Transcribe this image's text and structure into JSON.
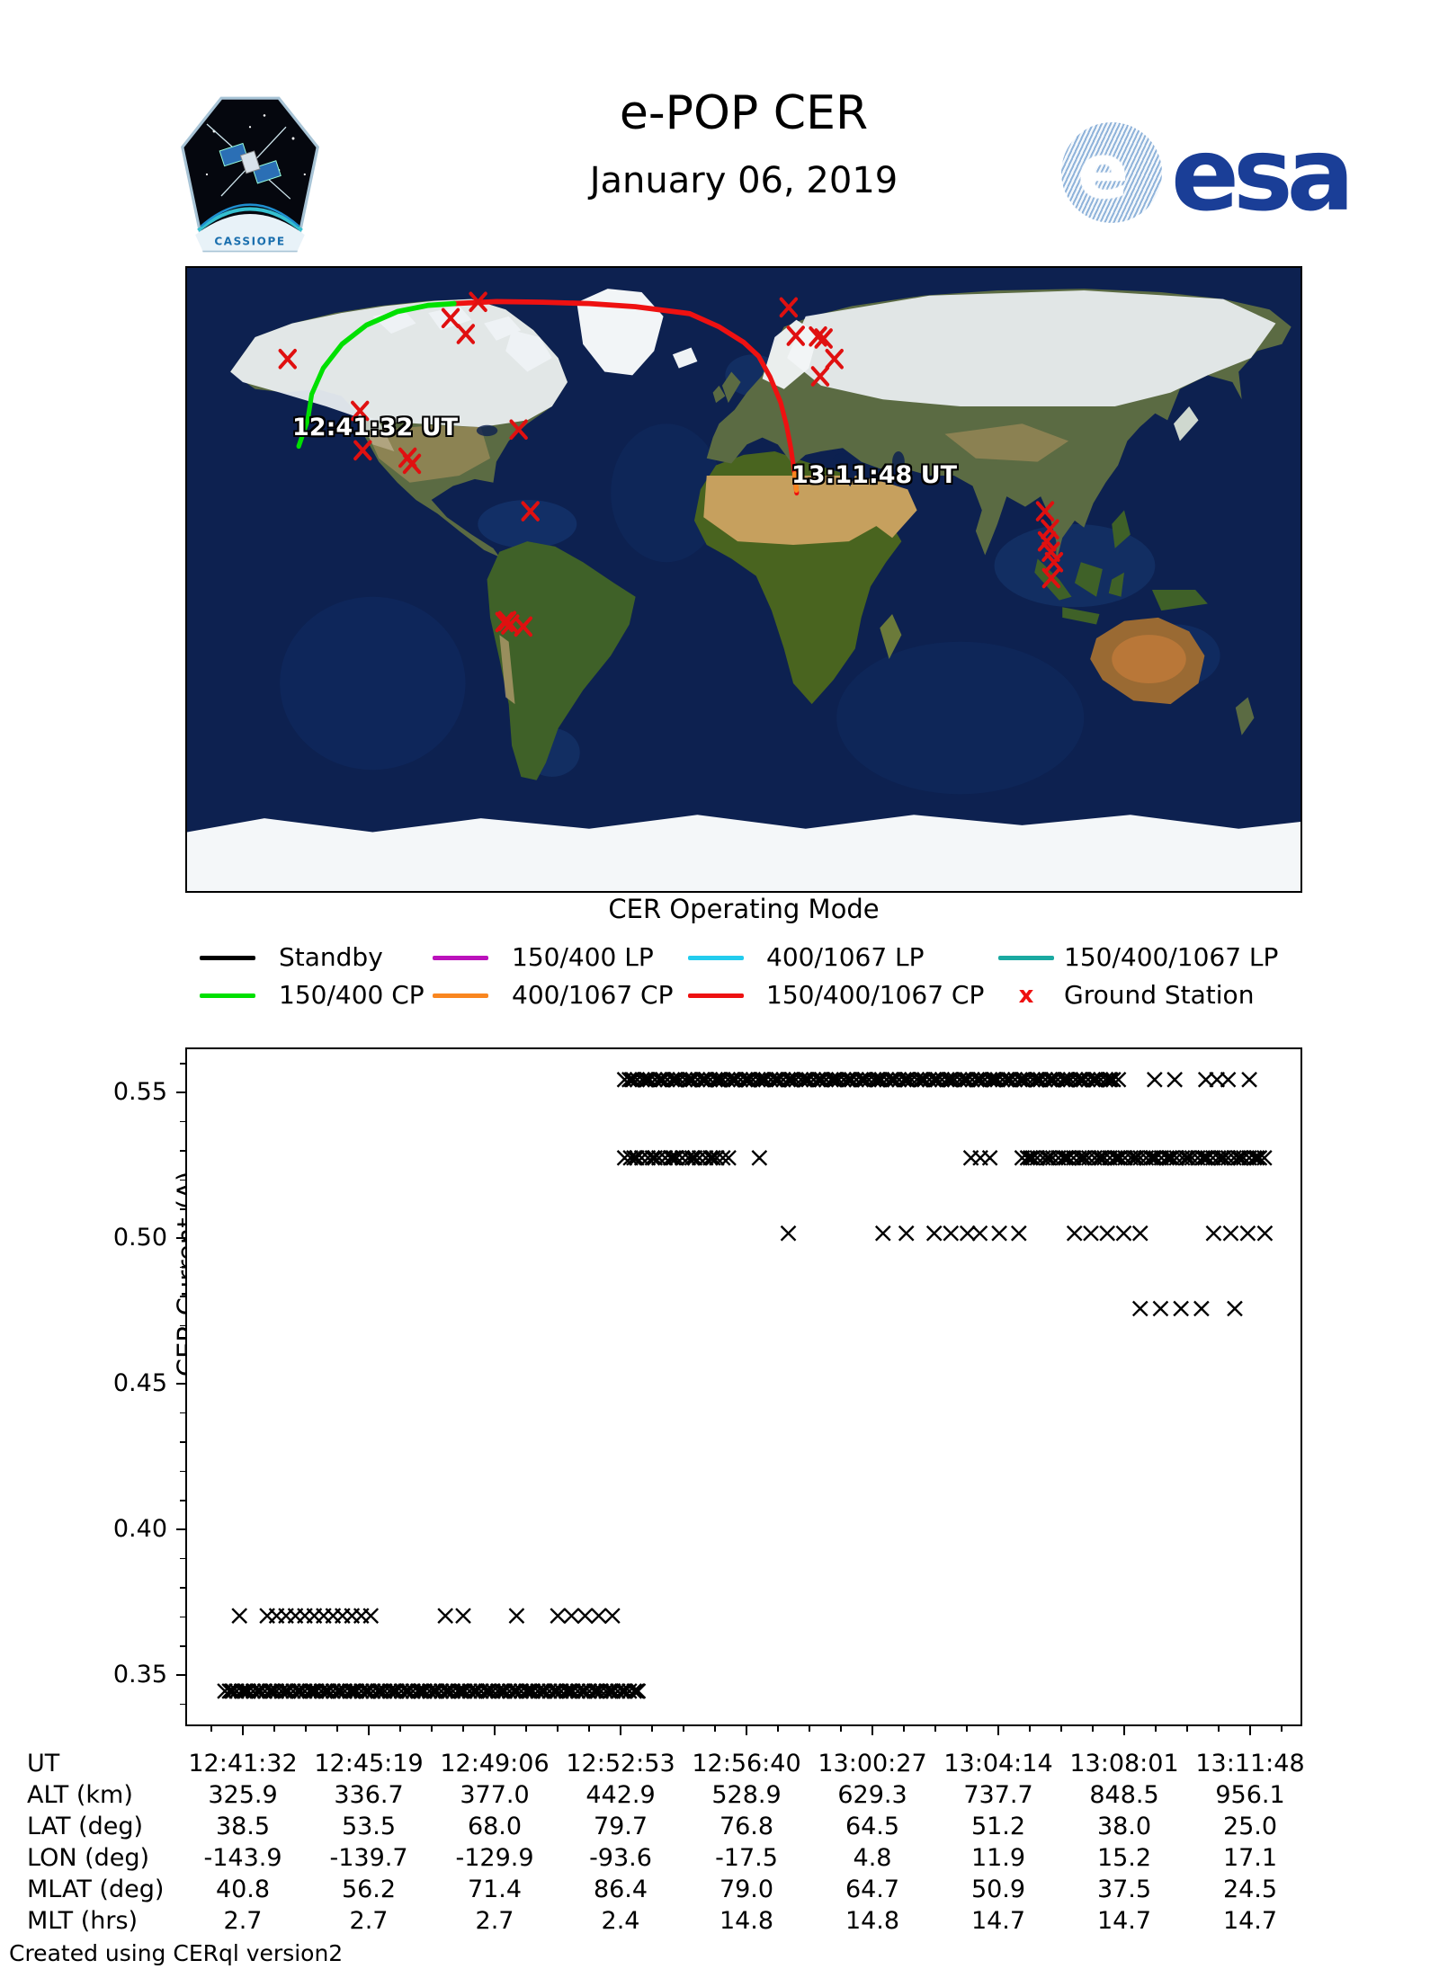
{
  "header": {
    "title": "e-POP CER",
    "date": "January 06, 2019",
    "mission_patch_text": "CASSIOPE",
    "esa_logo_text": "esa"
  },
  "map": {
    "start_label": "12:41:32 UT",
    "end_label": "13:11:48 UT",
    "track": {
      "green_mode": "150/400 CP",
      "red_mode": "150/400/1067 CP",
      "green_points": [
        [
          -143.9,
          38.5
        ],
        [
          -141.0,
          46.0
        ],
        [
          -139.7,
          53.5
        ],
        [
          -136.0,
          61.0
        ],
        [
          -129.9,
          68.0
        ],
        [
          -122.0,
          73.5
        ],
        [
          -112.0,
          77.4
        ],
        [
          -102.0,
          79.2
        ],
        [
          -93.6,
          79.7
        ]
      ],
      "red_points": [
        [
          -93.6,
          79.7
        ],
        [
          -80.0,
          80.3
        ],
        [
          -65.0,
          80.1
        ],
        [
          -50.0,
          79.7
        ],
        [
          -35.0,
          78.8
        ],
        [
          -17.5,
          76.8
        ],
        [
          -8.0,
          73.0
        ],
        [
          0.0,
          68.5
        ],
        [
          4.8,
          64.5
        ],
        [
          8.5,
          58.5
        ],
        [
          11.9,
          51.2
        ],
        [
          13.8,
          44.6
        ],
        [
          15.2,
          38.0
        ],
        [
          16.3,
          31.5
        ],
        [
          17.1,
          25.0
        ]
      ]
    },
    "ground_stations_lonlat": [
      [
        -147.5,
        63.7
      ],
      [
        -94.8,
        75.5
      ],
      [
        -89.9,
        70.9
      ],
      [
        -85.9,
        80.2
      ],
      [
        -124.1,
        48.7
      ],
      [
        -123.2,
        37.3
      ],
      [
        -108.7,
        35.2
      ],
      [
        -107.3,
        33.4
      ],
      [
        -72.8,
        43.3
      ],
      [
        -69.0,
        19.7
      ],
      [
        -77.4,
        -12.3
      ],
      [
        -76.5,
        -12.0
      ],
      [
        -75.5,
        -13.0
      ],
      [
        -71.3,
        -13.6
      ],
      [
        14.5,
        78.6
      ],
      [
        16.8,
        70.4
      ],
      [
        24.0,
        70.2
      ],
      [
        25.8,
        69.6
      ],
      [
        29.3,
        63.7
      ],
      [
        24.7,
        58.7
      ],
      [
        97.4,
        19.7
      ],
      [
        99.0,
        14.5
      ],
      [
        98.0,
        11.0
      ],
      [
        99.3,
        8.0
      ],
      [
        100.3,
        5.0
      ],
      [
        99.4,
        0.4
      ]
    ]
  },
  "legend": {
    "title": "CER Operating Mode",
    "rows": [
      [
        {
          "label": "Standby",
          "color": "#000000",
          "swatch": "line"
        },
        {
          "label": "150/400 LP",
          "color": "#bb11bb",
          "swatch": "line"
        },
        {
          "label": "400/1067 LP",
          "color": "#22ccee",
          "swatch": "line"
        },
        {
          "label": "150/400/1067 LP",
          "color": "#1aa9a1",
          "swatch": "line"
        }
      ],
      [
        {
          "label": "150/400 CP",
          "color": "#00e000",
          "swatch": "line"
        },
        {
          "label": "400/1067 CP",
          "color": "#f98620",
          "swatch": "line"
        },
        {
          "label": "150/400/1067 CP",
          "color": "#ee1111",
          "swatch": "line"
        },
        {
          "label": "Ground Station",
          "color": "#ee1111",
          "swatch": "x"
        }
      ]
    ]
  },
  "chart_data": {
    "type": "scatter",
    "marker": "x",
    "marker_color": "#000000",
    "ylabel": "CER Current (A)",
    "ylim": [
      0.3325,
      0.5655
    ],
    "yticks": [
      "0.35",
      "0.40",
      "0.45",
      "0.50",
      "0.55"
    ],
    "ytick_values": [
      0.35,
      0.4,
      0.45,
      0.5,
      0.55
    ],
    "y_minor_step": 0.01,
    "xticks": [
      "12:41:32",
      "12:45:19",
      "12:49:06",
      "12:52:53",
      "12:56:40",
      "13:00:27",
      "13:04:14",
      "13:08:01",
      "13:11:48"
    ],
    "grid": false,
    "current_levels": [
      0.555,
      0.528,
      0.502,
      0.476,
      0.37,
      0.344
    ],
    "clusters": [
      {
        "current": 0.555,
        "x0": 0.393,
        "x1": 0.836,
        "n": 150
      },
      {
        "current": 0.555,
        "x0": 0.869,
        "x1": 0.869,
        "n": 1
      },
      {
        "current": 0.555,
        "x0": 0.887,
        "x1": 0.887,
        "n": 1
      },
      {
        "current": 0.555,
        "x0": 0.915,
        "x1": 0.935,
        "n": 3
      },
      {
        "current": 0.555,
        "x0": 0.954,
        "x1": 0.954,
        "n": 1
      },
      {
        "current": 0.528,
        "x0": 0.393,
        "x1": 0.485,
        "n": 24
      },
      {
        "current": 0.528,
        "x0": 0.514,
        "x1": 0.514,
        "n": 1
      },
      {
        "current": 0.528,
        "x0": 0.704,
        "x1": 0.721,
        "n": 3
      },
      {
        "current": 0.528,
        "x0": 0.75,
        "x1": 0.968,
        "n": 62
      },
      {
        "current": 0.502,
        "x0": 0.54,
        "x1": 0.54,
        "n": 1
      },
      {
        "current": 0.502,
        "x0": 0.625,
        "x1": 0.646,
        "n": 2
      },
      {
        "current": 0.502,
        "x0": 0.671,
        "x1": 0.701,
        "n": 3
      },
      {
        "current": 0.502,
        "x0": 0.712,
        "x1": 0.747,
        "n": 3
      },
      {
        "current": 0.502,
        "x0": 0.797,
        "x1": 0.856,
        "n": 5
      },
      {
        "current": 0.502,
        "x0": 0.922,
        "x1": 0.968,
        "n": 4
      },
      {
        "current": 0.476,
        "x0": 0.856,
        "x1": 0.911,
        "n": 4
      },
      {
        "current": 0.476,
        "x0": 0.941,
        "x1": 0.941,
        "n": 1
      },
      {
        "current": 0.37,
        "x0": 0.047,
        "x1": 0.047,
        "n": 1
      },
      {
        "current": 0.37,
        "x0": 0.072,
        "x1": 0.165,
        "n": 12
      },
      {
        "current": 0.37,
        "x0": 0.232,
        "x1": 0.248,
        "n": 2
      },
      {
        "current": 0.37,
        "x0": 0.296,
        "x1": 0.296,
        "n": 1
      },
      {
        "current": 0.37,
        "x0": 0.333,
        "x1": 0.382,
        "n": 5
      },
      {
        "current": 0.344,
        "x0": 0.034,
        "x1": 0.406,
        "n": 135
      }
    ]
  },
  "table": {
    "rows": [
      {
        "label": "UT",
        "values": [
          "12:41:32",
          "12:45:19",
          "12:49:06",
          "12:52:53",
          "12:56:40",
          "13:00:27",
          "13:04:14",
          "13:08:01",
          "13:11:48"
        ]
      },
      {
        "label": "ALT (km)",
        "values": [
          "325.9",
          "336.7",
          "377.0",
          "442.9",
          "528.9",
          "629.3",
          "737.7",
          "848.5",
          "956.1"
        ]
      },
      {
        "label": "LAT (deg)",
        "values": [
          "38.5",
          "53.5",
          "68.0",
          "79.7",
          "76.8",
          "64.5",
          "51.2",
          "38.0",
          "25.0"
        ]
      },
      {
        "label": "LON (deg)",
        "values": [
          "-143.9",
          "-139.7",
          "-129.9",
          "-93.6",
          "-17.5",
          "4.8",
          "11.9",
          "15.2",
          "17.1"
        ]
      },
      {
        "label": "MLAT (deg)",
        "values": [
          "40.8",
          "56.2",
          "71.4",
          "86.4",
          "79.0",
          "64.7",
          "50.9",
          "37.5",
          "24.5"
        ]
      },
      {
        "label": "MLT (hrs)",
        "values": [
          "2.7",
          "2.7",
          "2.7",
          "2.4",
          "14.8",
          "14.8",
          "14.7",
          "14.7",
          "14.7"
        ]
      }
    ]
  },
  "footer": "Created using CERql version2"
}
